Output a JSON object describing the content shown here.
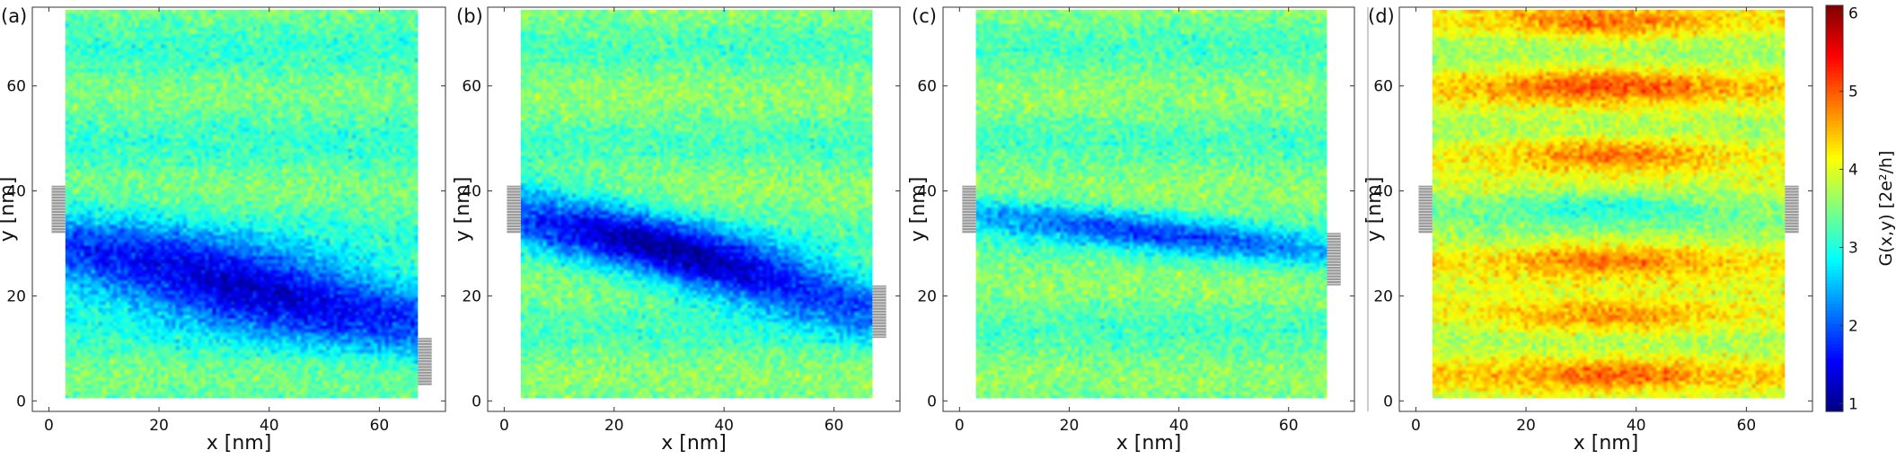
{
  "chart_data": [
    {
      "type": "heatmap",
      "panel_label": "(a)",
      "xlabel": "x [nm]",
      "ylabel": "y [nm]",
      "xlim": [
        -3,
        72
      ],
      "ylim": [
        -2,
        75
      ],
      "xticks": [
        0,
        20,
        40,
        60
      ],
      "yticks": [
        0,
        20,
        40,
        60
      ],
      "sample_x_range": [
        3,
        67
      ],
      "sample_y_range": [
        0.5,
        74.5
      ],
      "background_level": 3.3,
      "features": [
        {
          "kind": "channel",
          "x_start": 3,
          "y_start_center": 28,
          "x_end": 67,
          "y_end_center": 16,
          "half_width": 8,
          "depth": 1.9
        }
      ],
      "leads": [
        {
          "side": "left",
          "y_range": [
            32,
            41
          ]
        },
        {
          "side": "right",
          "y_range": [
            3,
            12
          ]
        }
      ]
    },
    {
      "type": "heatmap",
      "panel_label": "(b)",
      "xlabel": "x [nm]",
      "ylabel": "y [nm]",
      "xlim": [
        -3,
        72
      ],
      "ylim": [
        -2,
        75
      ],
      "xticks": [
        0,
        20,
        40,
        60
      ],
      "yticks": [
        0,
        20,
        40,
        60
      ],
      "sample_x_range": [
        3,
        67
      ],
      "sample_y_range": [
        0.5,
        74.5
      ],
      "background_level": 3.4,
      "features": [
        {
          "kind": "channel",
          "x_start": 3,
          "y_start_center": 36,
          "x_end": 67,
          "y_end_center": 18,
          "half_width": 6.5,
          "depth": 2.0
        }
      ],
      "leads": [
        {
          "side": "left",
          "y_range": [
            32,
            41
          ]
        },
        {
          "side": "right",
          "y_range": [
            12,
            22
          ]
        }
      ]
    },
    {
      "type": "heatmap",
      "panel_label": "(c)",
      "xlabel": "x [nm]",
      "ylabel": "y [nm]",
      "xlim": [
        -3,
        72
      ],
      "ylim": [
        -2,
        75
      ],
      "xticks": [
        0,
        20,
        40,
        60
      ],
      "yticks": [
        0,
        20,
        40,
        60
      ],
      "sample_x_range": [
        3,
        67
      ],
      "sample_y_range": [
        0.5,
        74.5
      ],
      "background_level": 3.4,
      "features": [
        {
          "kind": "channel",
          "x_start": 3,
          "y_start_center": 36,
          "x_end": 67,
          "y_end_center": 28,
          "half_width": 3.5,
          "depth": 1.2
        }
      ],
      "leads": [
        {
          "side": "left",
          "y_range": [
            32,
            41
          ]
        },
        {
          "side": "right",
          "y_range": [
            22,
            32
          ]
        }
      ]
    },
    {
      "type": "heatmap",
      "panel_label": "(d)",
      "xlabel": "x [nm]",
      "ylabel": "y [nm]",
      "xlim": [
        -3,
        72
      ],
      "ylim": [
        -2,
        75
      ],
      "xticks": [
        0,
        20,
        40,
        60
      ],
      "yticks": [
        0,
        20,
        40,
        60
      ],
      "sample_x_range": [
        3,
        67
      ],
      "sample_y_range": [
        0.5,
        74.5
      ],
      "background_level": 3.8,
      "features": [
        {
          "kind": "fringes",
          "centers_y": [
            5,
            16,
            27,
            37,
            47,
            60,
            72
          ],
          "levels": [
            4.7,
            4.8,
            4.8,
            3.0,
            4.9,
            4.9,
            4.8
          ],
          "half_width": 3.2
        }
      ],
      "leads": [
        {
          "side": "left",
          "y_range": [
            32,
            41
          ]
        },
        {
          "side": "right",
          "y_range": [
            32,
            41
          ]
        }
      ]
    }
  ],
  "colorbar": {
    "label": "G(x,y)  [2e²/h]",
    "range": [
      0.9,
      6.1
    ],
    "ticks": [
      1,
      2,
      3,
      4,
      5,
      6
    ],
    "colormap": "jet"
  }
}
